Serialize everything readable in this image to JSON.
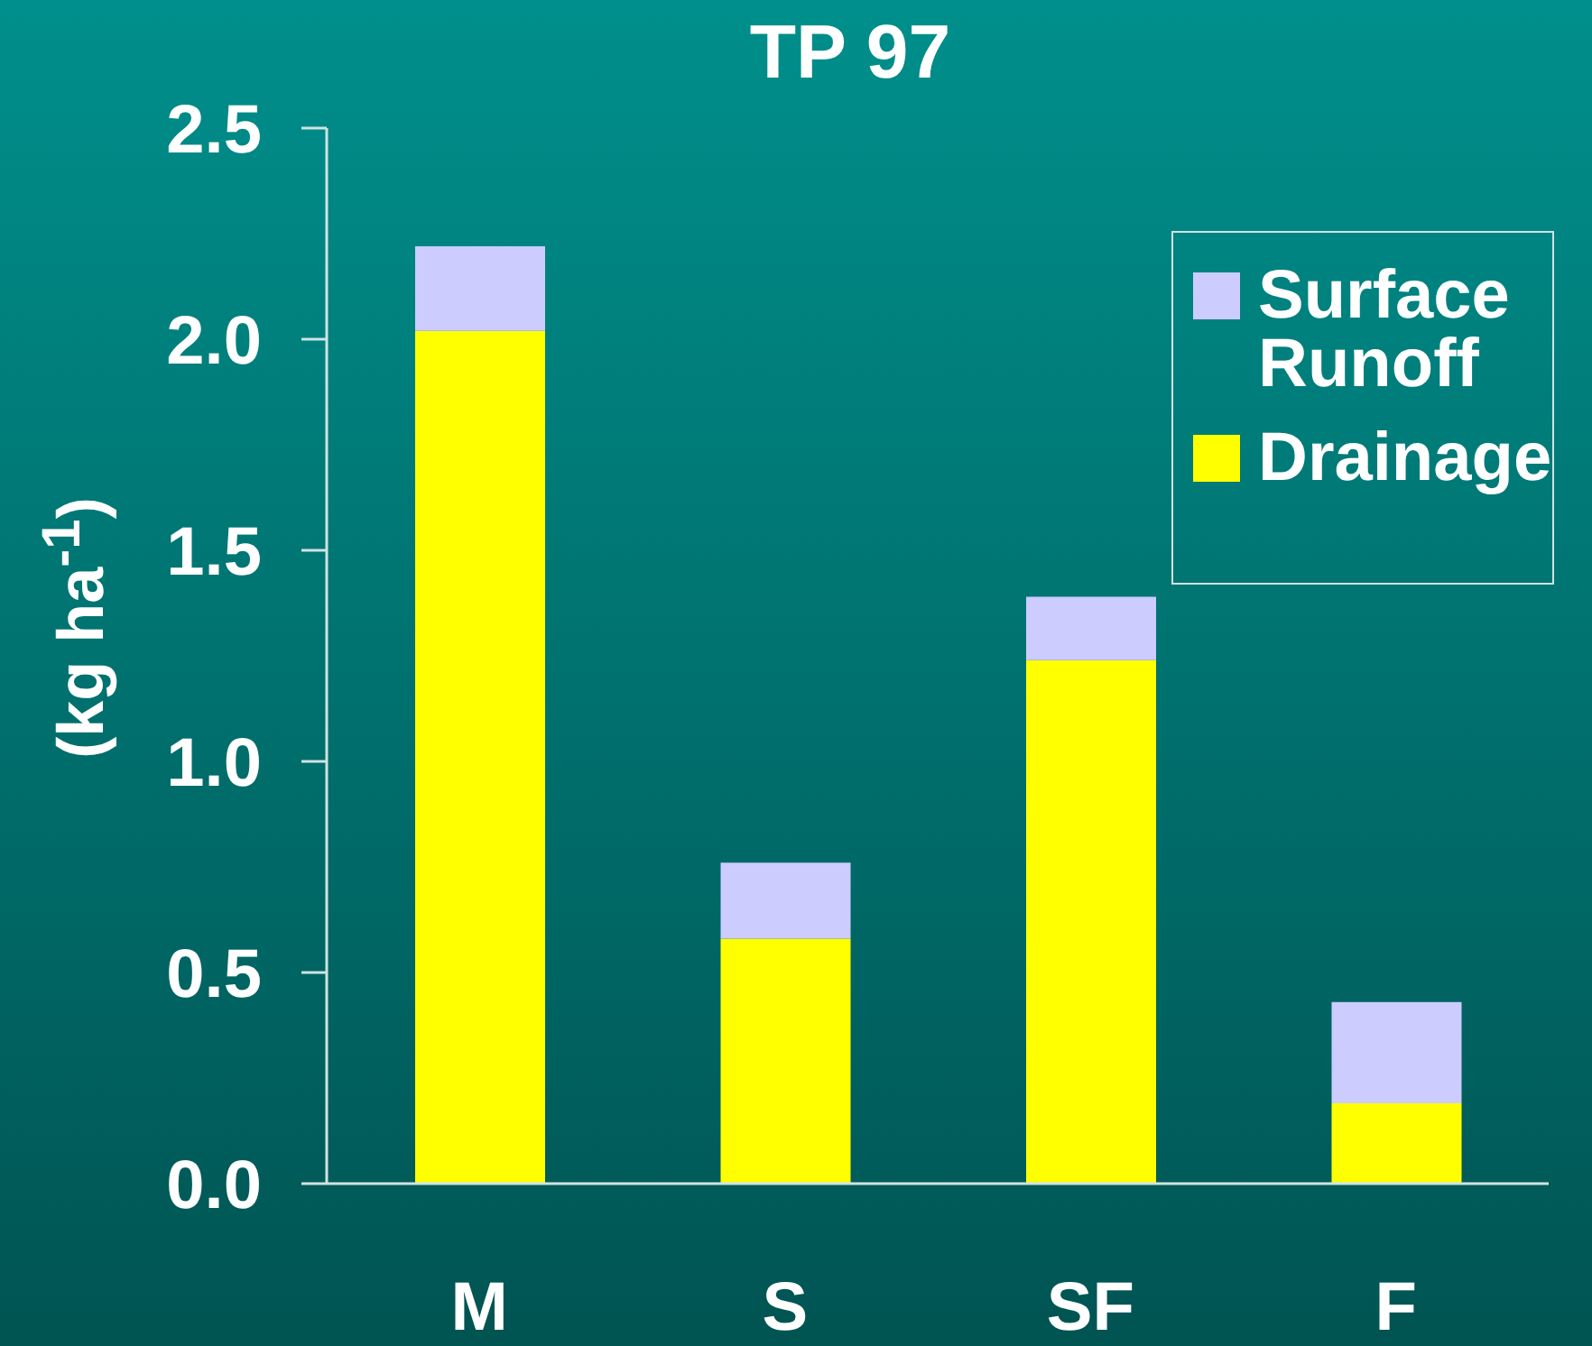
{
  "chart_data": {
    "type": "bar",
    "title": "TP 97",
    "ylabel": "(kg ha$^{-1}$)",
    "categories": [
      "M",
      "S",
      "SF",
      "F"
    ],
    "series": [
      {
        "name": "Drainage",
        "color": "#ffff00",
        "values": [
          2.02,
          0.58,
          1.24,
          0.19
        ]
      },
      {
        "name": "Surface Runoff",
        "color": "#ccccff",
        "values": [
          0.2,
          0.18,
          0.15,
          0.24
        ]
      }
    ],
    "stacked": true,
    "ylim": [
      0,
      2.5
    ],
    "yticks": [
      {
        "value": 0,
        "label": "0.0"
      },
      0.5,
      {
        "value": 1,
        "label": "1.0"
      },
      1.5,
      {
        "value": 2,
        "label": "2.0"
      },
      2.5
    ],
    "grid": false,
    "legend": "top right"
  }
}
